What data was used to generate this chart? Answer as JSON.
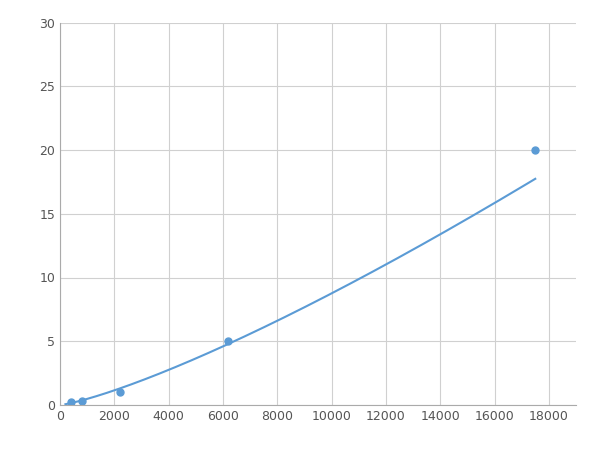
{
  "x_data": [
    400,
    800,
    2200,
    6200,
    17500
  ],
  "y_data": [
    0.2,
    0.3,
    1.0,
    5.0,
    20.0
  ],
  "line_color": "#5b9bd5",
  "marker_color": "#5b9bd5",
  "marker_size": 5,
  "marker_style": "o",
  "line_width": 1.5,
  "xlim": [
    0,
    19000
  ],
  "ylim": [
    0,
    30
  ],
  "xticks": [
    0,
    2000,
    4000,
    6000,
    8000,
    10000,
    12000,
    14000,
    16000,
    18000
  ],
  "yticks": [
    0,
    5,
    10,
    15,
    20,
    25,
    30
  ],
  "grid_color": "#d0d0d0",
  "background_color": "#ffffff",
  "figsize": [
    6.0,
    4.5
  ],
  "dpi": 100
}
